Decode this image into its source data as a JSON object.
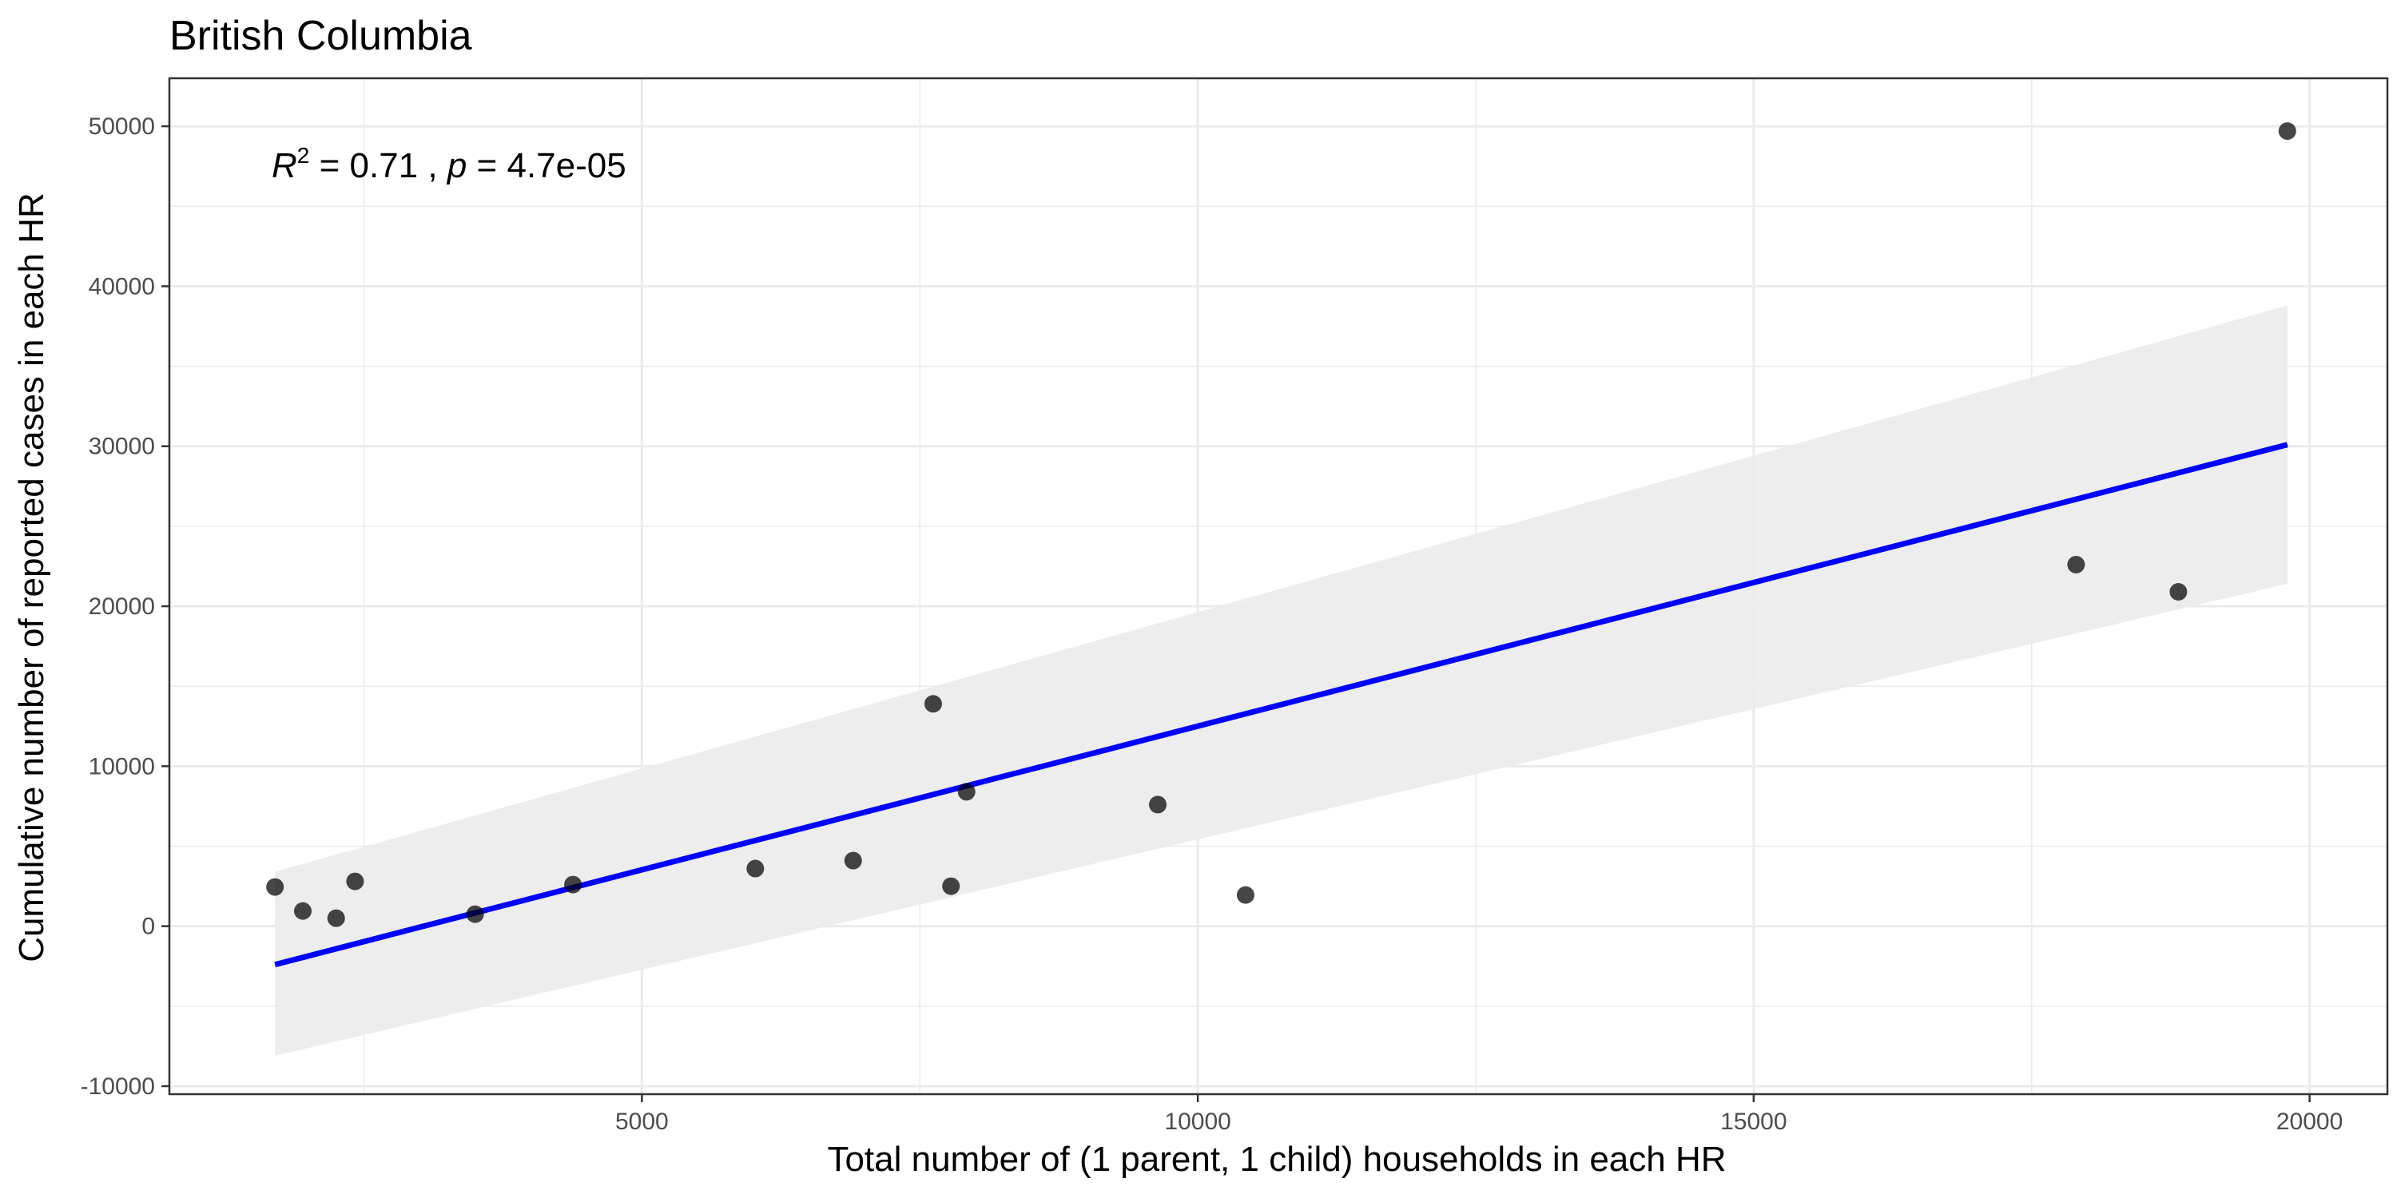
{
  "chart_data": {
    "type": "scatter",
    "title": "British Columbia",
    "xlabel": "Total number of (1 parent, 1 child) households in each HR",
    "ylabel": "Cumulative number of reported cases in each HR",
    "xlim": [
      750,
      20700
    ],
    "ylim": [
      -10500,
      53000
    ],
    "x_ticks": [
      5000,
      10000,
      15000,
      20000
    ],
    "x_tick_labels": [
      "5000",
      "10000",
      "15000",
      "20000"
    ],
    "x_minor_ticks": [
      2500,
      7500,
      12500,
      17500
    ],
    "y_ticks": [
      -10000,
      0,
      10000,
      20000,
      30000,
      40000,
      50000
    ],
    "y_tick_labels": [
      "-10000",
      "0",
      "10000",
      "20000",
      "30000",
      "40000",
      "50000"
    ],
    "y_minor_ticks": [
      -5000,
      5000,
      15000,
      25000,
      35000,
      45000
    ],
    "grid": true,
    "annotation": {
      "r_symbol": "R",
      "r_exponent": "2",
      "r_text": " = 0.71 , ",
      "p_symbol": "p",
      "p_text": " = 4.7e-05"
    },
    "points": [
      {
        "x": 1700,
        "y": 2450
      },
      {
        "x": 1950,
        "y": 950
      },
      {
        "x": 2250,
        "y": 500
      },
      {
        "x": 2420,
        "y": 2800
      },
      {
        "x": 3500,
        "y": 750
      },
      {
        "x": 4380,
        "y": 2600
      },
      {
        "x": 6020,
        "y": 3600
      },
      {
        "x": 6900,
        "y": 4100
      },
      {
        "x": 7620,
        "y": 13900
      },
      {
        "x": 7780,
        "y": 2500
      },
      {
        "x": 7920,
        "y": 8400
      },
      {
        "x": 9640,
        "y": 7600
      },
      {
        "x": 10430,
        "y": 1950
      },
      {
        "x": 17900,
        "y": 22600
      },
      {
        "x": 18820,
        "y": 20900
      },
      {
        "x": 19800,
        "y": 49700
      }
    ],
    "fit_line": {
      "x": [
        1700,
        19800
      ],
      "y": [
        -2400,
        30100
      ],
      "color": "#0000ff"
    },
    "confidence_band": {
      "x": [
        1700,
        19800
      ],
      "upper": [
        3400,
        38800
      ],
      "lower": [
        -8100,
        21400
      ],
      "color": "#ebebeb"
    },
    "point_color": "#000000",
    "grid_color": "#ebebeb",
    "panel_border_color": "#333333"
  }
}
